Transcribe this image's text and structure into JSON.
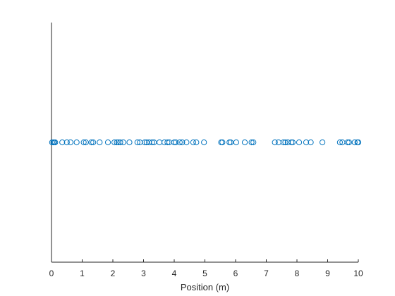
{
  "chart_data": {
    "type": "scatter",
    "title": "",
    "xlabel": "Position (m)",
    "ylabel": "",
    "xlim": [
      0,
      10
    ],
    "ylim": [
      -1,
      1
    ],
    "grid": false,
    "legend": "none",
    "marker": "open-circle",
    "marker_color": "#0072BD",
    "xticks": [
      "0",
      "1",
      "2",
      "3",
      "4",
      "5",
      "6",
      "7",
      "8",
      "9",
      "10"
    ],
    "series": [
      {
        "x": [
          0.02,
          0.06,
          0.09,
          0.12,
          0.35,
          0.5,
          0.62,
          0.82,
          1.05,
          1.12,
          1.3,
          1.36,
          1.57,
          1.84,
          2.05,
          2.13,
          2.18,
          2.24,
          2.34,
          2.54,
          2.8,
          2.88,
          3.04,
          3.1,
          3.18,
          3.28,
          3.34,
          3.52,
          3.68,
          3.78,
          3.84,
          4.0,
          4.05,
          4.18,
          4.26,
          4.4,
          4.62,
          4.72,
          4.97,
          5.53,
          5.57,
          5.8,
          5.84,
          6.02,
          6.3,
          6.52,
          6.58,
          7.28,
          7.4,
          7.56,
          7.62,
          7.7,
          7.82,
          7.86,
          8.07,
          8.3,
          8.45,
          8.83,
          9.4,
          9.48,
          9.65,
          9.7,
          9.88,
          9.97,
          10.0
        ],
        "y": [
          0,
          0,
          0,
          0,
          0,
          0,
          0,
          0,
          0,
          0,
          0,
          0,
          0,
          0,
          0,
          0,
          0,
          0,
          0,
          0,
          0,
          0,
          0,
          0,
          0,
          0,
          0,
          0,
          0,
          0,
          0,
          0,
          0,
          0,
          0,
          0,
          0,
          0,
          0,
          0,
          0,
          0,
          0,
          0,
          0,
          0,
          0,
          0,
          0,
          0,
          0,
          0,
          0,
          0,
          0,
          0,
          0,
          0,
          0,
          0,
          0,
          0,
          0,
          0,
          0
        ]
      }
    ]
  }
}
